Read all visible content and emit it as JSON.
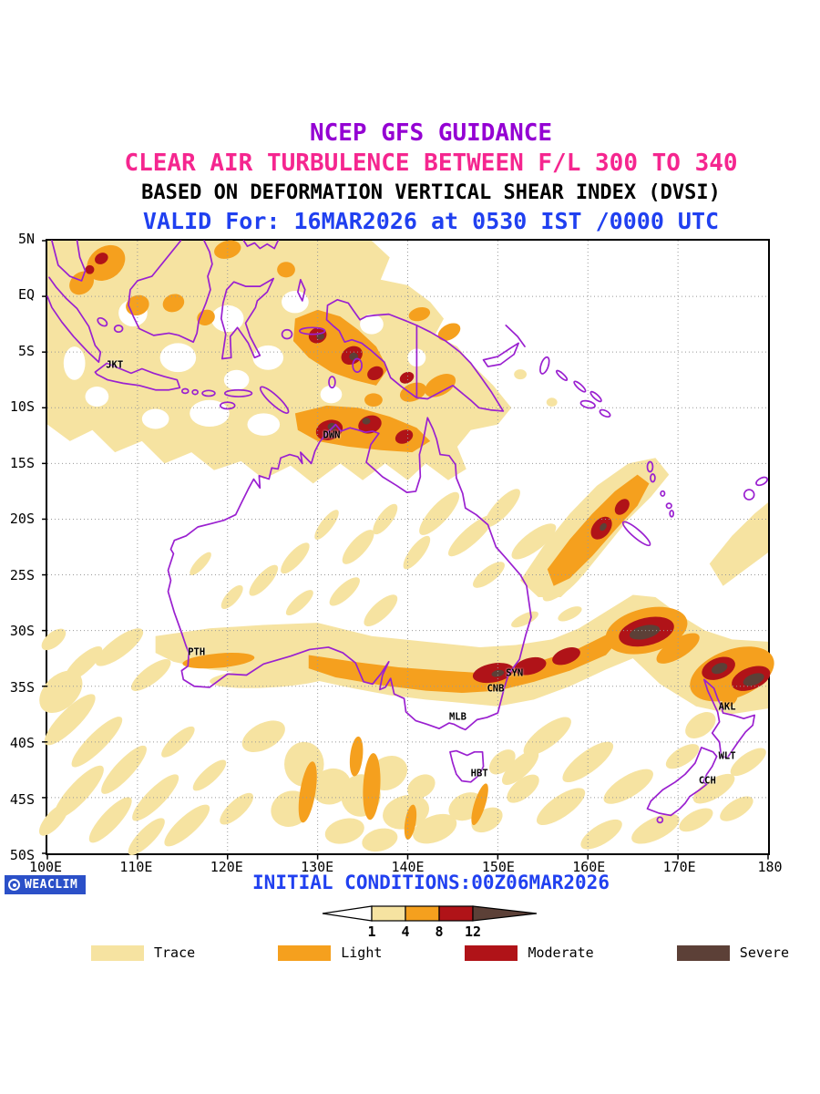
{
  "titles": {
    "line1": "NCEP GFS GUIDANCE",
    "line2": "CLEAR AIR TURBULENCE BETWEEN F/L 300 TO 340",
    "line3": "BASED ON DEFORMATION VERTICAL SHEAR INDEX (DVSI)",
    "line4": "VALID For: 16MAR2026 at 0530 IST /0000 UTC"
  },
  "colors": {
    "title1": "#9400D3",
    "title2": "#F5268F",
    "title3": "#000000",
    "title4": "#2040F0",
    "footer_blue": "#2040F0",
    "coast": "#9A20D0",
    "grid": "#999999",
    "trace": "#F6E3A1",
    "light": "#F5A01E",
    "moderate": "#B01318",
    "severe": "#5C4037",
    "logo_bg": "#2B50C8"
  },
  "map": {
    "lon_min": 100,
    "lon_max": 180,
    "lat_min": -50,
    "lat_max": 5,
    "lat_labels": [
      "5N",
      "EQ",
      "5S",
      "10S",
      "15S",
      "20S",
      "25S",
      "30S",
      "35S",
      "40S",
      "45S",
      "50S"
    ],
    "lon_labels": [
      "100E",
      "110E",
      "120E",
      "130E",
      "140E",
      "150E",
      "160E",
      "170E",
      "180"
    ],
    "cities": [
      {
        "code": "JKT",
        "lon": 106.8,
        "lat": -6.2
      },
      {
        "code": "DWN",
        "lon": 130.9,
        "lat": -12.5
      },
      {
        "code": "PTH",
        "lon": 115.9,
        "lat": -32.0
      },
      {
        "code": "SYN",
        "lon": 151.2,
        "lat": -33.9
      },
      {
        "code": "CNB",
        "lon": 149.1,
        "lat": -35.3
      },
      {
        "code": "MLB",
        "lon": 144.9,
        "lat": -37.8
      },
      {
        "code": "HBT",
        "lon": 147.3,
        "lat": -42.9
      },
      {
        "code": "AKL",
        "lon": 174.8,
        "lat": -36.9
      },
      {
        "code": "WLT",
        "lon": 174.8,
        "lat": -41.3
      },
      {
        "code": "CCH",
        "lon": 172.6,
        "lat": -43.5
      }
    ]
  },
  "footer": {
    "logo_text": "WEACLIM",
    "initial_conditions": "INITIAL CONDITIONS:00Z06MAR2026",
    "colorbar": {
      "tick_labels": [
        "1",
        "4",
        "8",
        "12"
      ]
    },
    "legend": [
      {
        "label": "Trace",
        "key": "trace"
      },
      {
        "label": "Light",
        "key": "light"
      },
      {
        "label": "Moderate",
        "key": "moderate"
      },
      {
        "label": "Severe",
        "key": "severe"
      }
    ]
  }
}
